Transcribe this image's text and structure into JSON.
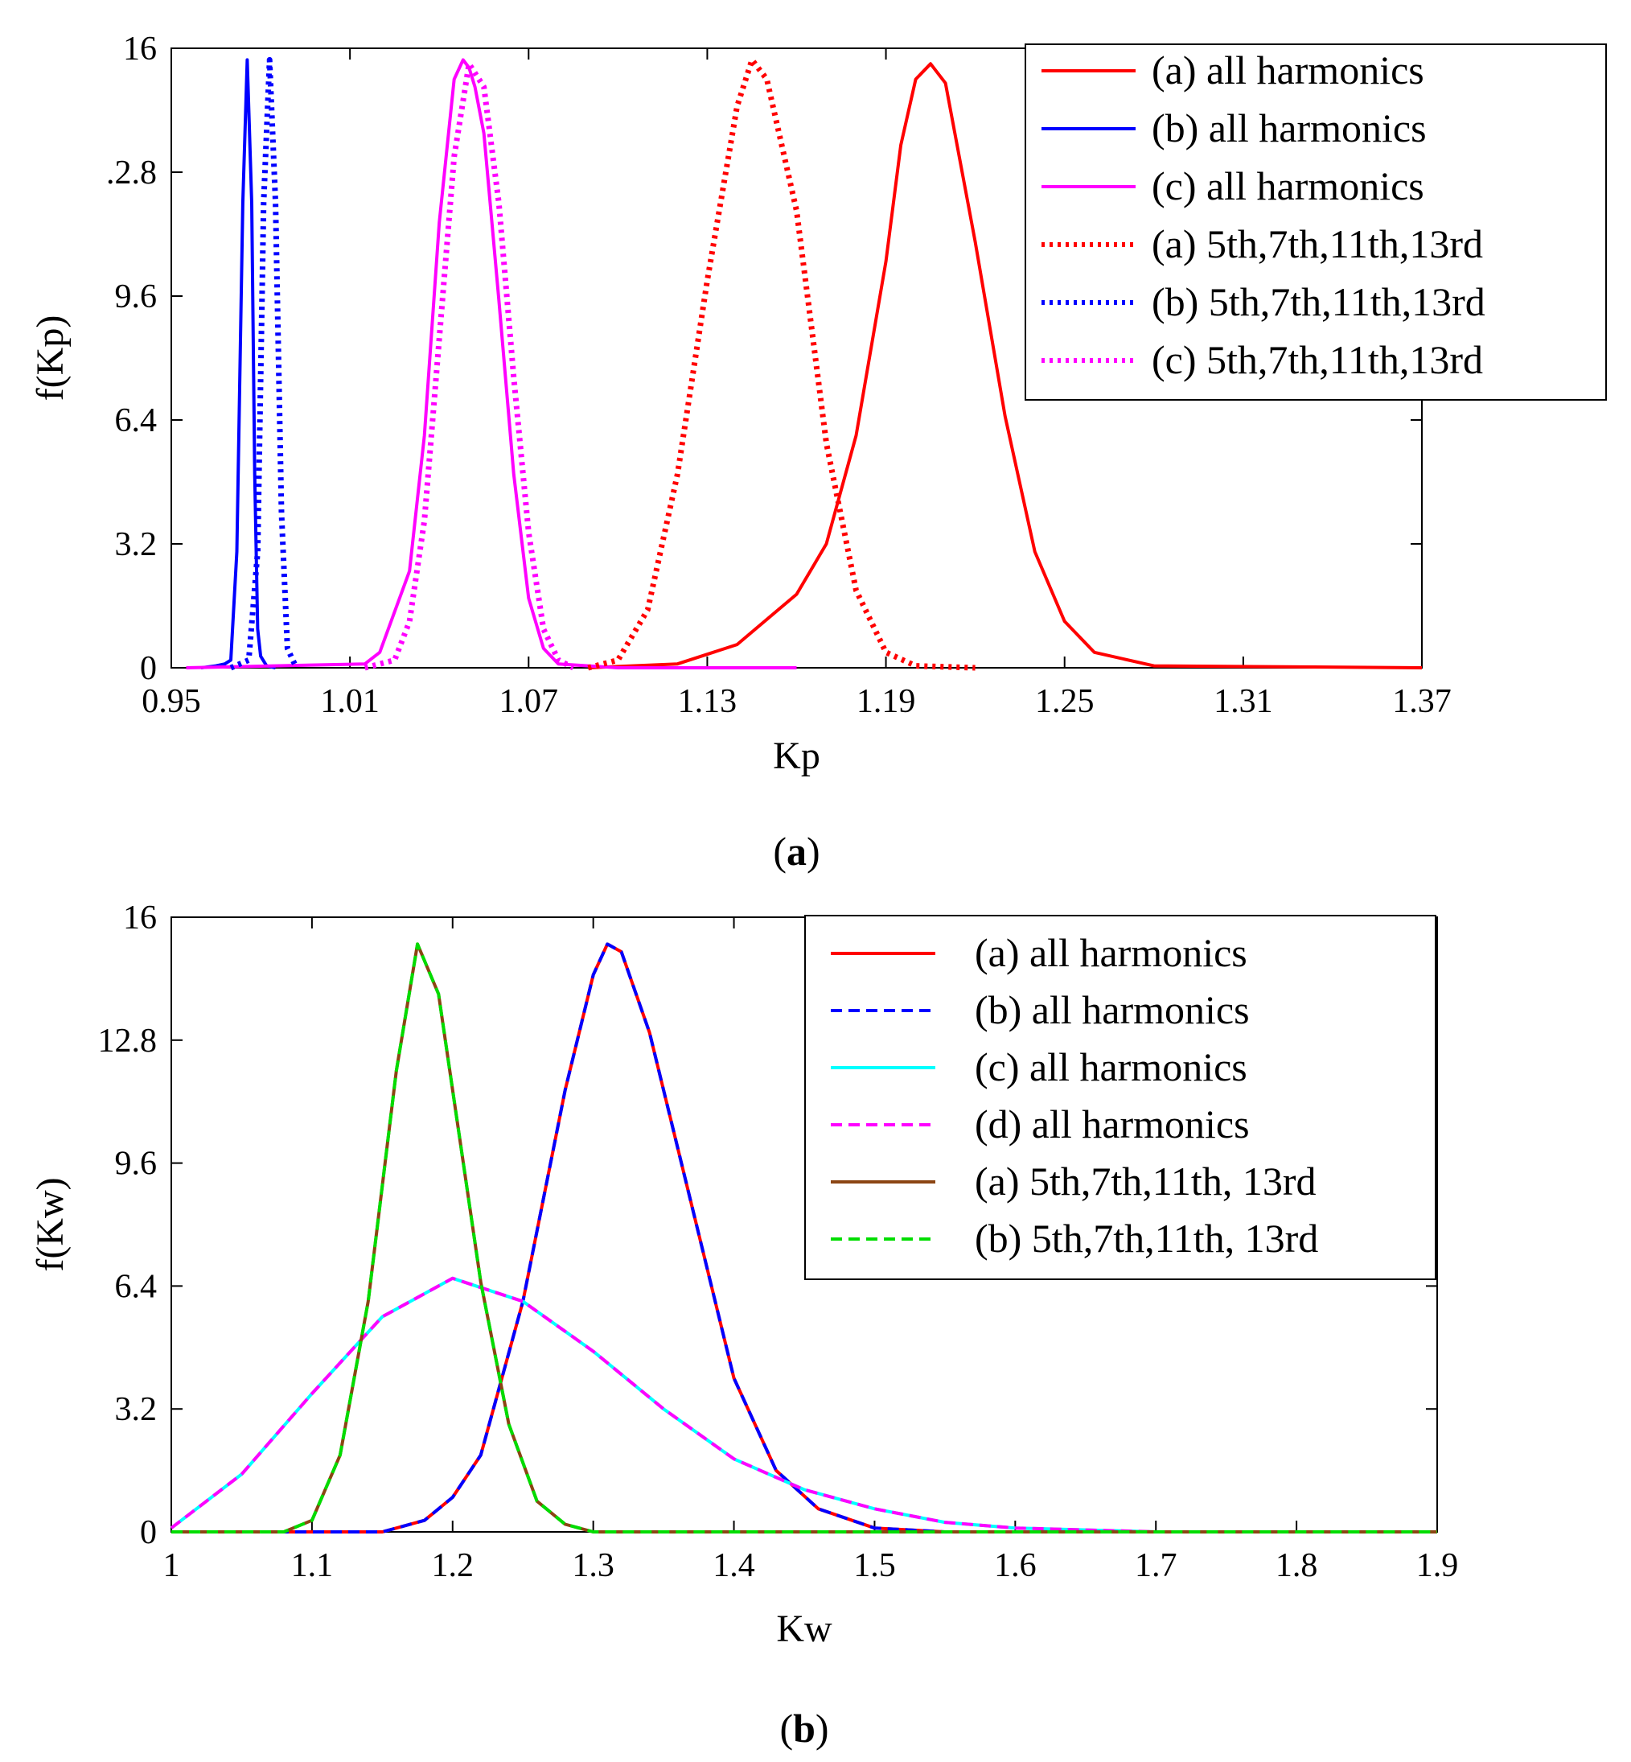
{
  "chart_data": [
    {
      "type": "line",
      "caption": "a",
      "xlabel": "Kp",
      "ylabel": "f(Kp)",
      "xlim": [
        0.95,
        1.37
      ],
      "ylim": [
        0,
        16
      ],
      "xticks": [
        "0.95",
        "1.01",
        "1.07",
        "1.13",
        "1.19",
        "1.25",
        "1.31",
        "1.37"
      ],
      "yticks": [
        "0",
        "3.2",
        "6.4",
        "9.6",
        ".2.8",
        "16"
      ],
      "legend_position": "top-right",
      "series": [
        {
          "name": "(a) all harmonics",
          "color": "#ff0000",
          "style": "solid",
          "peak": 15.7,
          "x": [
            1.09,
            1.12,
            1.14,
            1.16,
            1.17,
            1.18,
            1.19,
            1.195,
            1.2,
            1.205,
            1.21,
            1.22,
            1.23,
            1.24,
            1.25,
            1.26,
            1.28,
            1.37
          ],
          "y": [
            0,
            0.1,
            0.6,
            1.9,
            3.2,
            6.0,
            10.5,
            13.5,
            15.2,
            15.6,
            15.1,
            11.0,
            6.5,
            3.0,
            1.2,
            0.4,
            0.05,
            0
          ]
        },
        {
          "name": "(b) all harmonics",
          "color": "#0000ff",
          "style": "solid",
          "peak": 15.7,
          "x": [
            0.96,
            0.965,
            0.968,
            0.97,
            0.972,
            0.974,
            0.9755,
            0.977,
            0.978,
            0.979,
            0.98,
            0.982,
            0.985
          ],
          "y": [
            0,
            0.05,
            0.1,
            0.2,
            3.0,
            12.0,
            15.7,
            12.0,
            5.0,
            1.0,
            0.3,
            0.05,
            0
          ]
        },
        {
          "name": "(c) all harmonics",
          "color": "#ff00ff",
          "style": "solid",
          "peak": 15.7,
          "x": [
            0.955,
            1.015,
            1.02,
            1.03,
            1.035,
            1.04,
            1.045,
            1.048,
            1.05,
            1.052,
            1.055,
            1.06,
            1.065,
            1.07,
            1.075,
            1.08,
            1.1,
            1.16
          ],
          "y": [
            0,
            0.1,
            0.4,
            2.5,
            6.0,
            11.5,
            15.2,
            15.7,
            15.5,
            15.0,
            13.8,
            9.5,
            5.0,
            1.8,
            0.5,
            0.1,
            0,
            0
          ]
        },
        {
          "name": "(a) 5th,7th,11th,13rd",
          "color": "#ff0000",
          "style": "dotted",
          "peak": 15.7,
          "x": [
            1.09,
            1.1,
            1.11,
            1.12,
            1.13,
            1.14,
            1.145,
            1.15,
            1.16,
            1.17,
            1.18,
            1.19,
            1.2,
            1.22
          ],
          "y": [
            0,
            0.2,
            1.5,
            5.0,
            10.0,
            14.5,
            15.7,
            15.2,
            11.8,
            5.8,
            2.0,
            0.4,
            0.05,
            0
          ]
        },
        {
          "name": "(b) 5th,7th,11th,13rd",
          "color": "#0000ff",
          "style": "dotted",
          "peak": 15.7,
          "x": [
            0.97,
            0.976,
            0.979,
            0.981,
            0.983,
            0.985,
            0.987,
            0.989,
            0.992
          ],
          "y": [
            0,
            0.2,
            3.0,
            12.0,
            15.7,
            12.0,
            4.0,
            0.5,
            0
          ]
        },
        {
          "name": "(c) 5th,7th,11th,13rd",
          "color": "#ff00ff",
          "style": "dotted",
          "peak": 15.7,
          "x": [
            1.015,
            1.025,
            1.03,
            1.035,
            1.04,
            1.045,
            1.05,
            1.055,
            1.06,
            1.065,
            1.07,
            1.075,
            1.08,
            1.085
          ],
          "y": [
            0,
            0.2,
            1.2,
            3.8,
            8.5,
            13.2,
            15.6,
            15.0,
            12.0,
            7.5,
            3.5,
            1.0,
            0.2,
            0
          ]
        }
      ]
    },
    {
      "type": "line",
      "caption": "b",
      "xlabel": "Kw",
      "ylabel": "f(Kw)",
      "xlim": [
        1,
        1.9
      ],
      "ylim": [
        0,
        16
      ],
      "xticks": [
        "1",
        "1.1",
        "1.2",
        "1.3",
        "1.4",
        "1.5",
        "1.6",
        "1.7",
        "1.8",
        "1.9"
      ],
      "yticks": [
        "0",
        "3.2",
        "6.4",
        "9.6",
        "12.8",
        "16"
      ],
      "legend_position": "top-right",
      "series": [
        {
          "name": "(a) all harmonics",
          "color": "#ff0000",
          "style": "solid",
          "x": [
            1.0,
            1.15,
            1.18,
            1.2,
            1.22,
            1.25,
            1.28,
            1.3,
            1.31,
            1.32,
            1.34,
            1.37,
            1.4,
            1.43,
            1.46,
            1.5,
            1.55,
            1.9
          ],
          "y": [
            0,
            0,
            0.3,
            0.9,
            2.0,
            6.0,
            11.5,
            14.5,
            15.3,
            15.1,
            13.0,
            8.5,
            4.0,
            1.6,
            0.6,
            0.1,
            0,
            0
          ]
        },
        {
          "name": "(b) all harmonics",
          "color": "#0000ff",
          "style": "dashed",
          "x": [
            1.0,
            1.15,
            1.18,
            1.2,
            1.22,
            1.25,
            1.28,
            1.3,
            1.31,
            1.32,
            1.34,
            1.37,
            1.4,
            1.43,
            1.46,
            1.5,
            1.55,
            1.9
          ],
          "y": [
            0,
            0,
            0.3,
            0.9,
            2.0,
            6.0,
            11.5,
            14.5,
            15.3,
            15.1,
            13.0,
            8.5,
            4.0,
            1.6,
            0.6,
            0.1,
            0,
            0
          ]
        },
        {
          "name": "(c) all harmonics",
          "color": "#00ffff",
          "style": "solid",
          "x": [
            1.0,
            1.05,
            1.1,
            1.15,
            1.2,
            1.25,
            1.3,
            1.35,
            1.4,
            1.45,
            1.5,
            1.55,
            1.6,
            1.7,
            1.8,
            1.9
          ],
          "y": [
            0.1,
            1.5,
            3.6,
            5.6,
            6.6,
            6.0,
            4.7,
            3.2,
            1.9,
            1.1,
            0.6,
            0.25,
            0.1,
            0,
            0,
            0
          ]
        },
        {
          "name": "(d) all harmonics",
          "color": "#ff00ff",
          "style": "dashed",
          "x": [
            1.0,
            1.05,
            1.1,
            1.15,
            1.2,
            1.25,
            1.3,
            1.35,
            1.4,
            1.45,
            1.5,
            1.55,
            1.6,
            1.7,
            1.8,
            1.9
          ],
          "y": [
            0.1,
            1.5,
            3.6,
            5.6,
            6.6,
            6.0,
            4.7,
            3.2,
            1.9,
            1.1,
            0.6,
            0.25,
            0.1,
            0,
            0,
            0
          ]
        },
        {
          "name": "(a) 5th,7th,11th, 13rd",
          "color": "#8b4513",
          "style": "solid",
          "x": [
            1.0,
            1.08,
            1.1,
            1.12,
            1.14,
            1.16,
            1.175,
            1.19,
            1.2,
            1.22,
            1.24,
            1.26,
            1.28,
            1.3,
            1.9
          ],
          "y": [
            0,
            0,
            0.3,
            2.0,
            6.0,
            12.0,
            15.3,
            14.0,
            11.5,
            6.5,
            2.8,
            0.8,
            0.2,
            0,
            0
          ]
        },
        {
          "name": "(b) 5th,7th,11th, 13rd",
          "color": "#00dd00",
          "style": "dashed",
          "x": [
            1.0,
            1.08,
            1.1,
            1.12,
            1.14,
            1.16,
            1.175,
            1.19,
            1.2,
            1.22,
            1.24,
            1.26,
            1.28,
            1.3,
            1.9
          ],
          "y": [
            0,
            0,
            0.3,
            2.0,
            6.0,
            12.0,
            15.3,
            14.0,
            11.5,
            6.5,
            2.8,
            0.8,
            0.2,
            0,
            0
          ]
        }
      ]
    }
  ]
}
